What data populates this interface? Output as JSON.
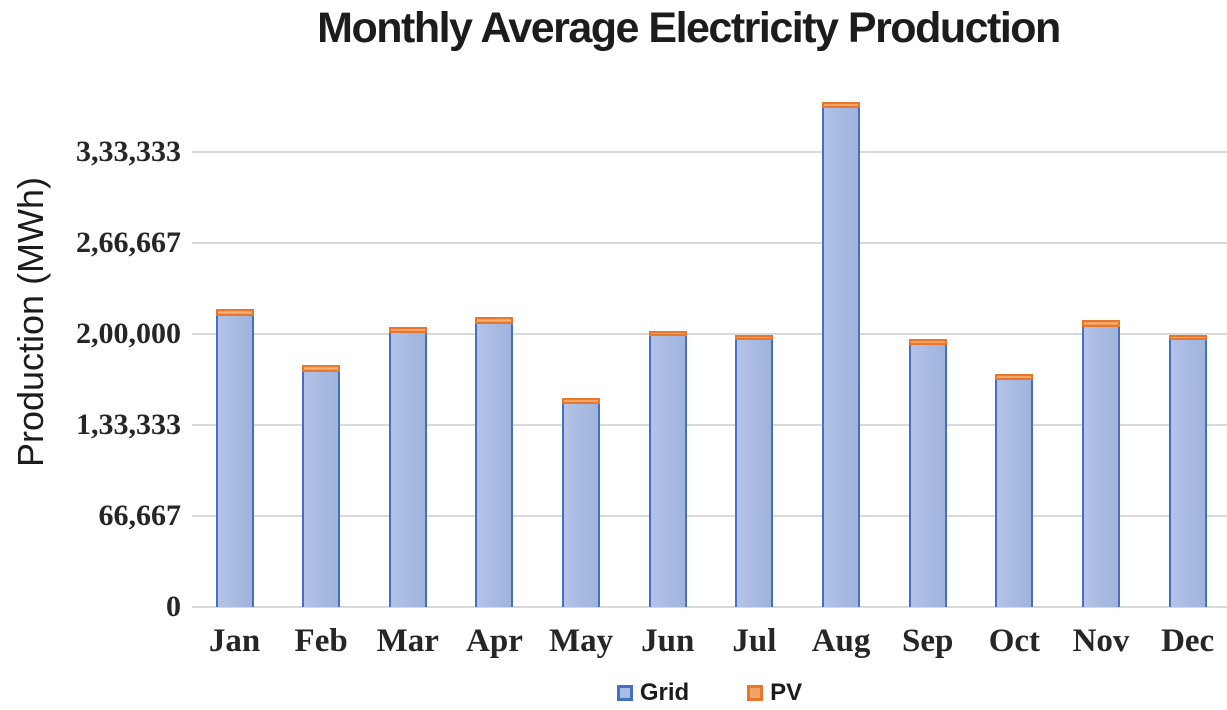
{
  "chart_data": {
    "type": "bar",
    "stacked": true,
    "title": "Monthly Average Electricity Production",
    "xlabel": "",
    "ylabel": "Production (MWh)",
    "categories": [
      "Jan",
      "Feb",
      "Mar",
      "Apr",
      "May",
      "Jun",
      "Jul",
      "Aug",
      "Sep",
      "Oct",
      "Nov",
      "Dec"
    ],
    "series": [
      {
        "name": "Grid",
        "fill_color": "#A9BCE2",
        "border_color": "#4470C4",
        "values": [
          213500,
          172500,
          200500,
          207500,
          148500,
          198500,
          195500,
          365500,
          192000,
          166000,
          205500,
          195500
        ]
      },
      {
        "name": "PV",
        "fill_color": "#F3A269",
        "border_color": "#E8762C",
        "values": [
          4500,
          4500,
          5000,
          5000,
          4500,
          4000,
          4000,
          4500,
          4000,
          5000,
          4500,
          4000
        ]
      }
    ],
    "stack_totals": [
      218000,
      177000,
      205500,
      212500,
      153000,
      202500,
      199500,
      370000,
      196000,
      171000,
      210000,
      199500
    ],
    "y_axis": {
      "tick_labels": [
        "0",
        "66,667",
        "1,33,333",
        "2,00,000",
        "2,66,667",
        "3,33,333"
      ],
      "tick_values": [
        0,
        66667,
        133333,
        200000,
        266667,
        333333
      ],
      "range": [
        0,
        380000
      ],
      "number_format": "indian-digit-grouping"
    },
    "grid": "horizontal",
    "gridline_color": "#D9D9D9",
    "legend_position": "bottom-center",
    "text_color": "#1C1C1C"
  }
}
